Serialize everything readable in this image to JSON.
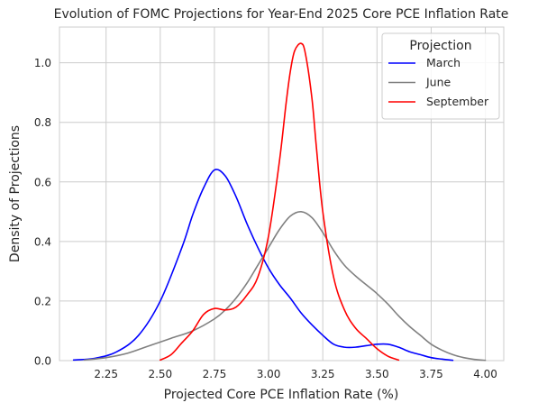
{
  "chart_data": {
    "type": "line",
    "title": "Evolution of FOMC Projections for Year-End 2025 Core PCE Inflation Rate",
    "xlabel": "Projected Core PCE Inflation Rate (%)",
    "ylabel": "Density of Projections",
    "xlim": [
      2.035,
      4.085
    ],
    "ylim": [
      0,
      1.12
    ],
    "xticks": [
      "2.25",
      "2.50",
      "2.75",
      "3.00",
      "3.25",
      "3.50",
      "3.75",
      "4.00"
    ],
    "yticks": [
      "0.0",
      "0.2",
      "0.4",
      "0.6",
      "0.8",
      "1.0"
    ],
    "grid": true,
    "legend": {
      "title": "Projection",
      "placement": "top-right"
    },
    "series": [
      {
        "name": "March",
        "color": "#0000ff",
        "x": [
          2.1,
          2.2,
          2.3,
          2.4,
          2.5,
          2.6,
          2.65,
          2.7,
          2.75,
          2.8,
          2.85,
          2.9,
          2.95,
          3.0,
          3.05,
          3.1,
          3.15,
          3.2,
          3.25,
          3.3,
          3.35,
          3.4,
          3.45,
          3.5,
          3.55,
          3.6,
          3.65,
          3.7,
          3.75,
          3.8,
          3.85
        ],
        "y": [
          0.002,
          0.008,
          0.03,
          0.085,
          0.2,
          0.38,
          0.49,
          0.58,
          0.64,
          0.62,
          0.55,
          0.46,
          0.38,
          0.31,
          0.255,
          0.21,
          0.16,
          0.12,
          0.085,
          0.055,
          0.045,
          0.045,
          0.05,
          0.055,
          0.055,
          0.045,
          0.03,
          0.02,
          0.01,
          0.005,
          0.001
        ]
      },
      {
        "name": "June",
        "color": "#808080",
        "x": [
          2.15,
          2.25,
          2.35,
          2.45,
          2.55,
          2.65,
          2.75,
          2.8,
          2.85,
          2.9,
          2.95,
          3.0,
          3.05,
          3.1,
          3.15,
          3.2,
          3.25,
          3.3,
          3.35,
          3.4,
          3.45,
          3.5,
          3.55,
          3.6,
          3.65,
          3.7,
          3.75,
          3.8,
          3.85,
          3.9,
          3.95,
          4.0
        ],
        "y": [
          0.002,
          0.01,
          0.025,
          0.05,
          0.075,
          0.1,
          0.14,
          0.17,
          0.21,
          0.26,
          0.32,
          0.38,
          0.44,
          0.485,
          0.5,
          0.48,
          0.43,
          0.37,
          0.32,
          0.285,
          0.255,
          0.225,
          0.19,
          0.15,
          0.115,
          0.085,
          0.055,
          0.035,
          0.02,
          0.01,
          0.004,
          0.001
        ]
      },
      {
        "name": "September",
        "color": "#ff0000",
        "x": [
          2.5,
          2.55,
          2.6,
          2.65,
          2.7,
          2.75,
          2.8,
          2.85,
          2.9,
          2.95,
          3.0,
          3.05,
          3.08,
          3.1,
          3.12,
          3.15,
          3.17,
          3.2,
          3.22,
          3.25,
          3.3,
          3.35,
          3.4,
          3.45,
          3.5,
          3.55,
          3.6
        ],
        "y": [
          0.002,
          0.02,
          0.06,
          0.1,
          0.155,
          0.175,
          0.17,
          0.18,
          0.22,
          0.28,
          0.42,
          0.67,
          0.86,
          0.97,
          1.04,
          1.065,
          1.03,
          0.88,
          0.72,
          0.5,
          0.28,
          0.17,
          0.11,
          0.075,
          0.04,
          0.015,
          0.002
        ]
      }
    ]
  }
}
